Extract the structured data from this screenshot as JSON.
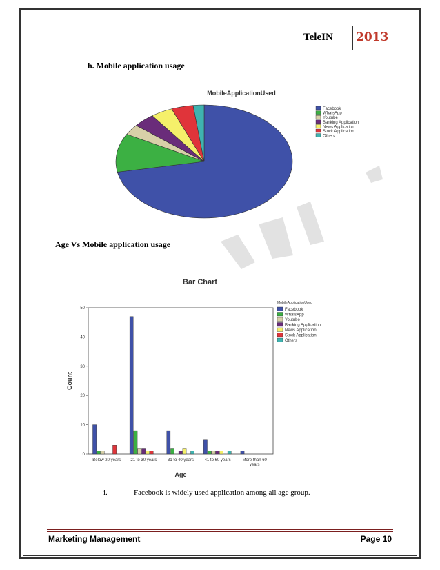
{
  "header": {
    "brand": "TeleIN",
    "year": "2013",
    "year_color": "#c0392b"
  },
  "section_h": "h.   Mobile application usage",
  "section_age": "Age Vs Mobile application usage",
  "note": {
    "num": "i.",
    "text": "Facebook is widely used application among all age group."
  },
  "footer": {
    "left": "Marketing Management",
    "right": "Page 10",
    "rule_color": "#7b1f1f"
  },
  "chart_data": [
    {
      "type": "pie",
      "title": "MobileApplicationUsed",
      "legend": "right",
      "slices": [
        {
          "label": "Facebook",
          "value": 72,
          "color": "#3f51a8"
        },
        {
          "label": "WhatsApp",
          "value": 11,
          "color": "#3cb043"
        },
        {
          "label": "Youtube",
          "value": 3,
          "color": "#d8d0a8"
        },
        {
          "label": "Banking Application",
          "value": 4,
          "color": "#6a2c7a"
        },
        {
          "label": "News Application",
          "value": 4,
          "color": "#f5f06a"
        },
        {
          "label": "Stock Application",
          "value": 4,
          "color": "#e0343a"
        },
        {
          "label": "Others",
          "value": 2,
          "color": "#3fb3b0"
        }
      ]
    },
    {
      "type": "bar",
      "title": "Bar Chart",
      "xlabel": "Age",
      "ylabel": "Count",
      "ylim": [
        0,
        50
      ],
      "yticks": [
        "0",
        "10",
        "20",
        "30",
        "40",
        "50"
      ],
      "legend": "top-right",
      "legend_title": "MobileApplicationUsed",
      "categories": [
        "Below 20 years",
        "21 to 30 years",
        "31 to 40 years",
        "41 to 60 years",
        "More than 60 years"
      ],
      "category_lines": [
        [
          "Below 20 years"
        ],
        [
          "21 to 30 years"
        ],
        [
          "31 to 40 years"
        ],
        [
          "41 to 60 years"
        ],
        [
          "More than 60",
          "years"
        ]
      ],
      "series": [
        {
          "name": "Facebook",
          "color": "#3f51a8",
          "values": [
            10,
            47,
            8,
            5,
            1
          ]
        },
        {
          "name": "WhatsApp",
          "color": "#3cb043",
          "values": [
            1,
            8,
            2,
            1,
            0
          ]
        },
        {
          "name": "Youtube",
          "color": "#d8d0a8",
          "values": [
            1,
            2,
            0,
            1,
            0
          ]
        },
        {
          "name": "Banking Application",
          "color": "#6a2c7a",
          "values": [
            0,
            2,
            1,
            1,
            0
          ]
        },
        {
          "name": "News Application",
          "color": "#f5f06a",
          "values": [
            0,
            1,
            2,
            1,
            0
          ]
        },
        {
          "name": "Stock Application",
          "color": "#e0343a",
          "values": [
            3,
            1,
            0,
            0,
            0
          ]
        },
        {
          "name": "Others",
          "color": "#3fb3b0",
          "values": [
            0,
            0,
            1,
            1,
            0
          ]
        }
      ]
    }
  ]
}
